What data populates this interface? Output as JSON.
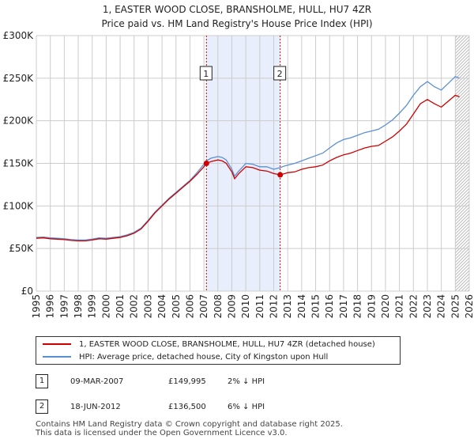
{
  "chart_data": {
    "type": "line",
    "title": "1, EASTER WOOD CLOSE, BRANSHOLME, HULL, HU7 4ZR",
    "subtitle": "Price paid vs. HM Land Registry's House Price Index (HPI)",
    "xlabel": "",
    "ylabel": "",
    "xlim": [
      1995,
      2026
    ],
    "ylim": [
      0,
      300000
    ],
    "x_ticks": [
      "1995",
      "1996",
      "1997",
      "1998",
      "1999",
      "2000",
      "2001",
      "2002",
      "2003",
      "2004",
      "2005",
      "2006",
      "2007",
      "2008",
      "2009",
      "2010",
      "2011",
      "2012",
      "2013",
      "2014",
      "2015",
      "2016",
      "2017",
      "2018",
      "2019",
      "2020",
      "2021",
      "2022",
      "2023",
      "2024",
      "2025",
      "2026"
    ],
    "y_ticks": [
      {
        "value": 0,
        "label": "£0"
      },
      {
        "value": 50000,
        "label": "£50K"
      },
      {
        "value": 100000,
        "label": "£100K"
      },
      {
        "value": 150000,
        "label": "£150K"
      },
      {
        "value": 200000,
        "label": "£200K"
      },
      {
        "value": 250000,
        "label": "£250K"
      },
      {
        "value": 300000,
        "label": "£300K"
      }
    ],
    "grid": true,
    "shaded_range": [
      2007.18,
      2012.46
    ],
    "forecast_start": 2025.0,
    "series": [
      {
        "name": "1, EASTER WOOD CLOSE, BRANSHOLME, HULL, HU7 4ZR (detached house)",
        "color": "#cc0000",
        "x": [
          1995,
          1995.5,
          1996,
          1996.5,
          1997,
          1997.5,
          1998,
          1998.5,
          1999,
          1999.5,
          2000,
          2000.5,
          2001,
          2001.5,
          2002,
          2002.5,
          2003,
          2003.5,
          2004,
          2004.5,
          2005,
          2005.5,
          2006,
          2006.5,
          2007,
          2007.18,
          2007.5,
          2008,
          2008.3,
          2008.6,
          2009,
          2009.2,
          2009.5,
          2010,
          2010.5,
          2011,
          2011.5,
          2012,
          2012.46,
          2012.8,
          2013,
          2013.5,
          2014,
          2014.5,
          2015,
          2015.5,
          2016,
          2016.5,
          2017,
          2017.5,
          2018,
          2018.5,
          2019,
          2019.5,
          2020,
          2020.5,
          2021,
          2021.5,
          2022,
          2022.5,
          2023,
          2023.5,
          2024,
          2024.5,
          2025,
          2025.3
        ],
        "y": [
          62000,
          62500,
          61500,
          61000,
          60500,
          59500,
          59000,
          59000,
          60000,
          61500,
          61000,
          62000,
          63000,
          65000,
          68000,
          73000,
          82000,
          92000,
          100000,
          108000,
          115000,
          122000,
          129000,
          137000,
          146000,
          149995,
          152000,
          154000,
          153000,
          150000,
          140000,
          132000,
          138000,
          146000,
          145000,
          142000,
          141000,
          138000,
          136500,
          138000,
          139000,
          140000,
          143000,
          145000,
          146000,
          148000,
          153000,
          157000,
          160000,
          162000,
          165000,
          168000,
          170000,
          171000,
          176000,
          181000,
          188000,
          196000,
          208000,
          220000,
          225000,
          220000,
          216000,
          223000,
          230000,
          228000
        ]
      },
      {
        "name": "HPI: Average price, detached house, City of Kingston upon Hull",
        "color": "#5b8fd4",
        "x": [
          1995,
          1995.5,
          1996,
          1996.5,
          1997,
          1997.5,
          1998,
          1998.5,
          1999,
          1999.5,
          2000,
          2000.5,
          2001,
          2001.5,
          2002,
          2002.5,
          2003,
          2003.5,
          2004,
          2004.5,
          2005,
          2005.5,
          2006,
          2006.5,
          2007,
          2007.18,
          2007.5,
          2008,
          2008.3,
          2008.6,
          2009,
          2009.2,
          2009.5,
          2010,
          2010.5,
          2011,
          2011.5,
          2012,
          2012.46,
          2012.8,
          2013,
          2013.5,
          2014,
          2014.5,
          2015,
          2015.5,
          2016,
          2016.5,
          2017,
          2017.5,
          2018,
          2018.5,
          2019,
          2019.5,
          2020,
          2020.5,
          2021,
          2021.5,
          2022,
          2022.5,
          2023,
          2023.5,
          2024,
          2024.5,
          2025,
          2025.3
        ],
        "y": [
          63000,
          63500,
          62500,
          62000,
          61500,
          60500,
          60000,
          60000,
          61000,
          62500,
          62000,
          63000,
          64000,
          66000,
          69000,
          74000,
          83000,
          93000,
          101000,
          109000,
          116000,
          123000,
          130000,
          139000,
          149000,
          153000,
          156000,
          158000,
          157000,
          154000,
          143000,
          135000,
          141000,
          150000,
          149000,
          146000,
          146000,
          143000,
          145000,
          147000,
          148000,
          150000,
          153000,
          156000,
          159000,
          162000,
          168000,
          174000,
          178000,
          180000,
          183000,
          186000,
          188000,
          190000,
          195000,
          201000,
          209000,
          218000,
          230000,
          240000,
          246000,
          240000,
          236000,
          244000,
          252000,
          250000
        ]
      }
    ],
    "markers": [
      {
        "id": "1",
        "x": 2007.18,
        "y": 149995
      },
      {
        "id": "2",
        "x": 2012.46,
        "y": 136500
      }
    ]
  },
  "legend": {
    "property_label": "1, EASTER WOOD CLOSE, BRANSHOLME, HULL, HU7 4ZR (detached house)",
    "hpi_label": "HPI: Average price, detached house, City of Kingston upon Hull"
  },
  "transactions": [
    {
      "id": "1",
      "date": "09-MAR-2007",
      "price": "£149,995",
      "hpi": "2% ↓ HPI"
    },
    {
      "id": "2",
      "date": "18-JUN-2012",
      "price": "£136,500",
      "hpi": "6% ↓ HPI"
    }
  ],
  "footer": {
    "line1": "Contains HM Land Registry data © Crown copyright and database right 2025.",
    "line2": "This data is licensed under the Open Government Licence v3.0."
  }
}
